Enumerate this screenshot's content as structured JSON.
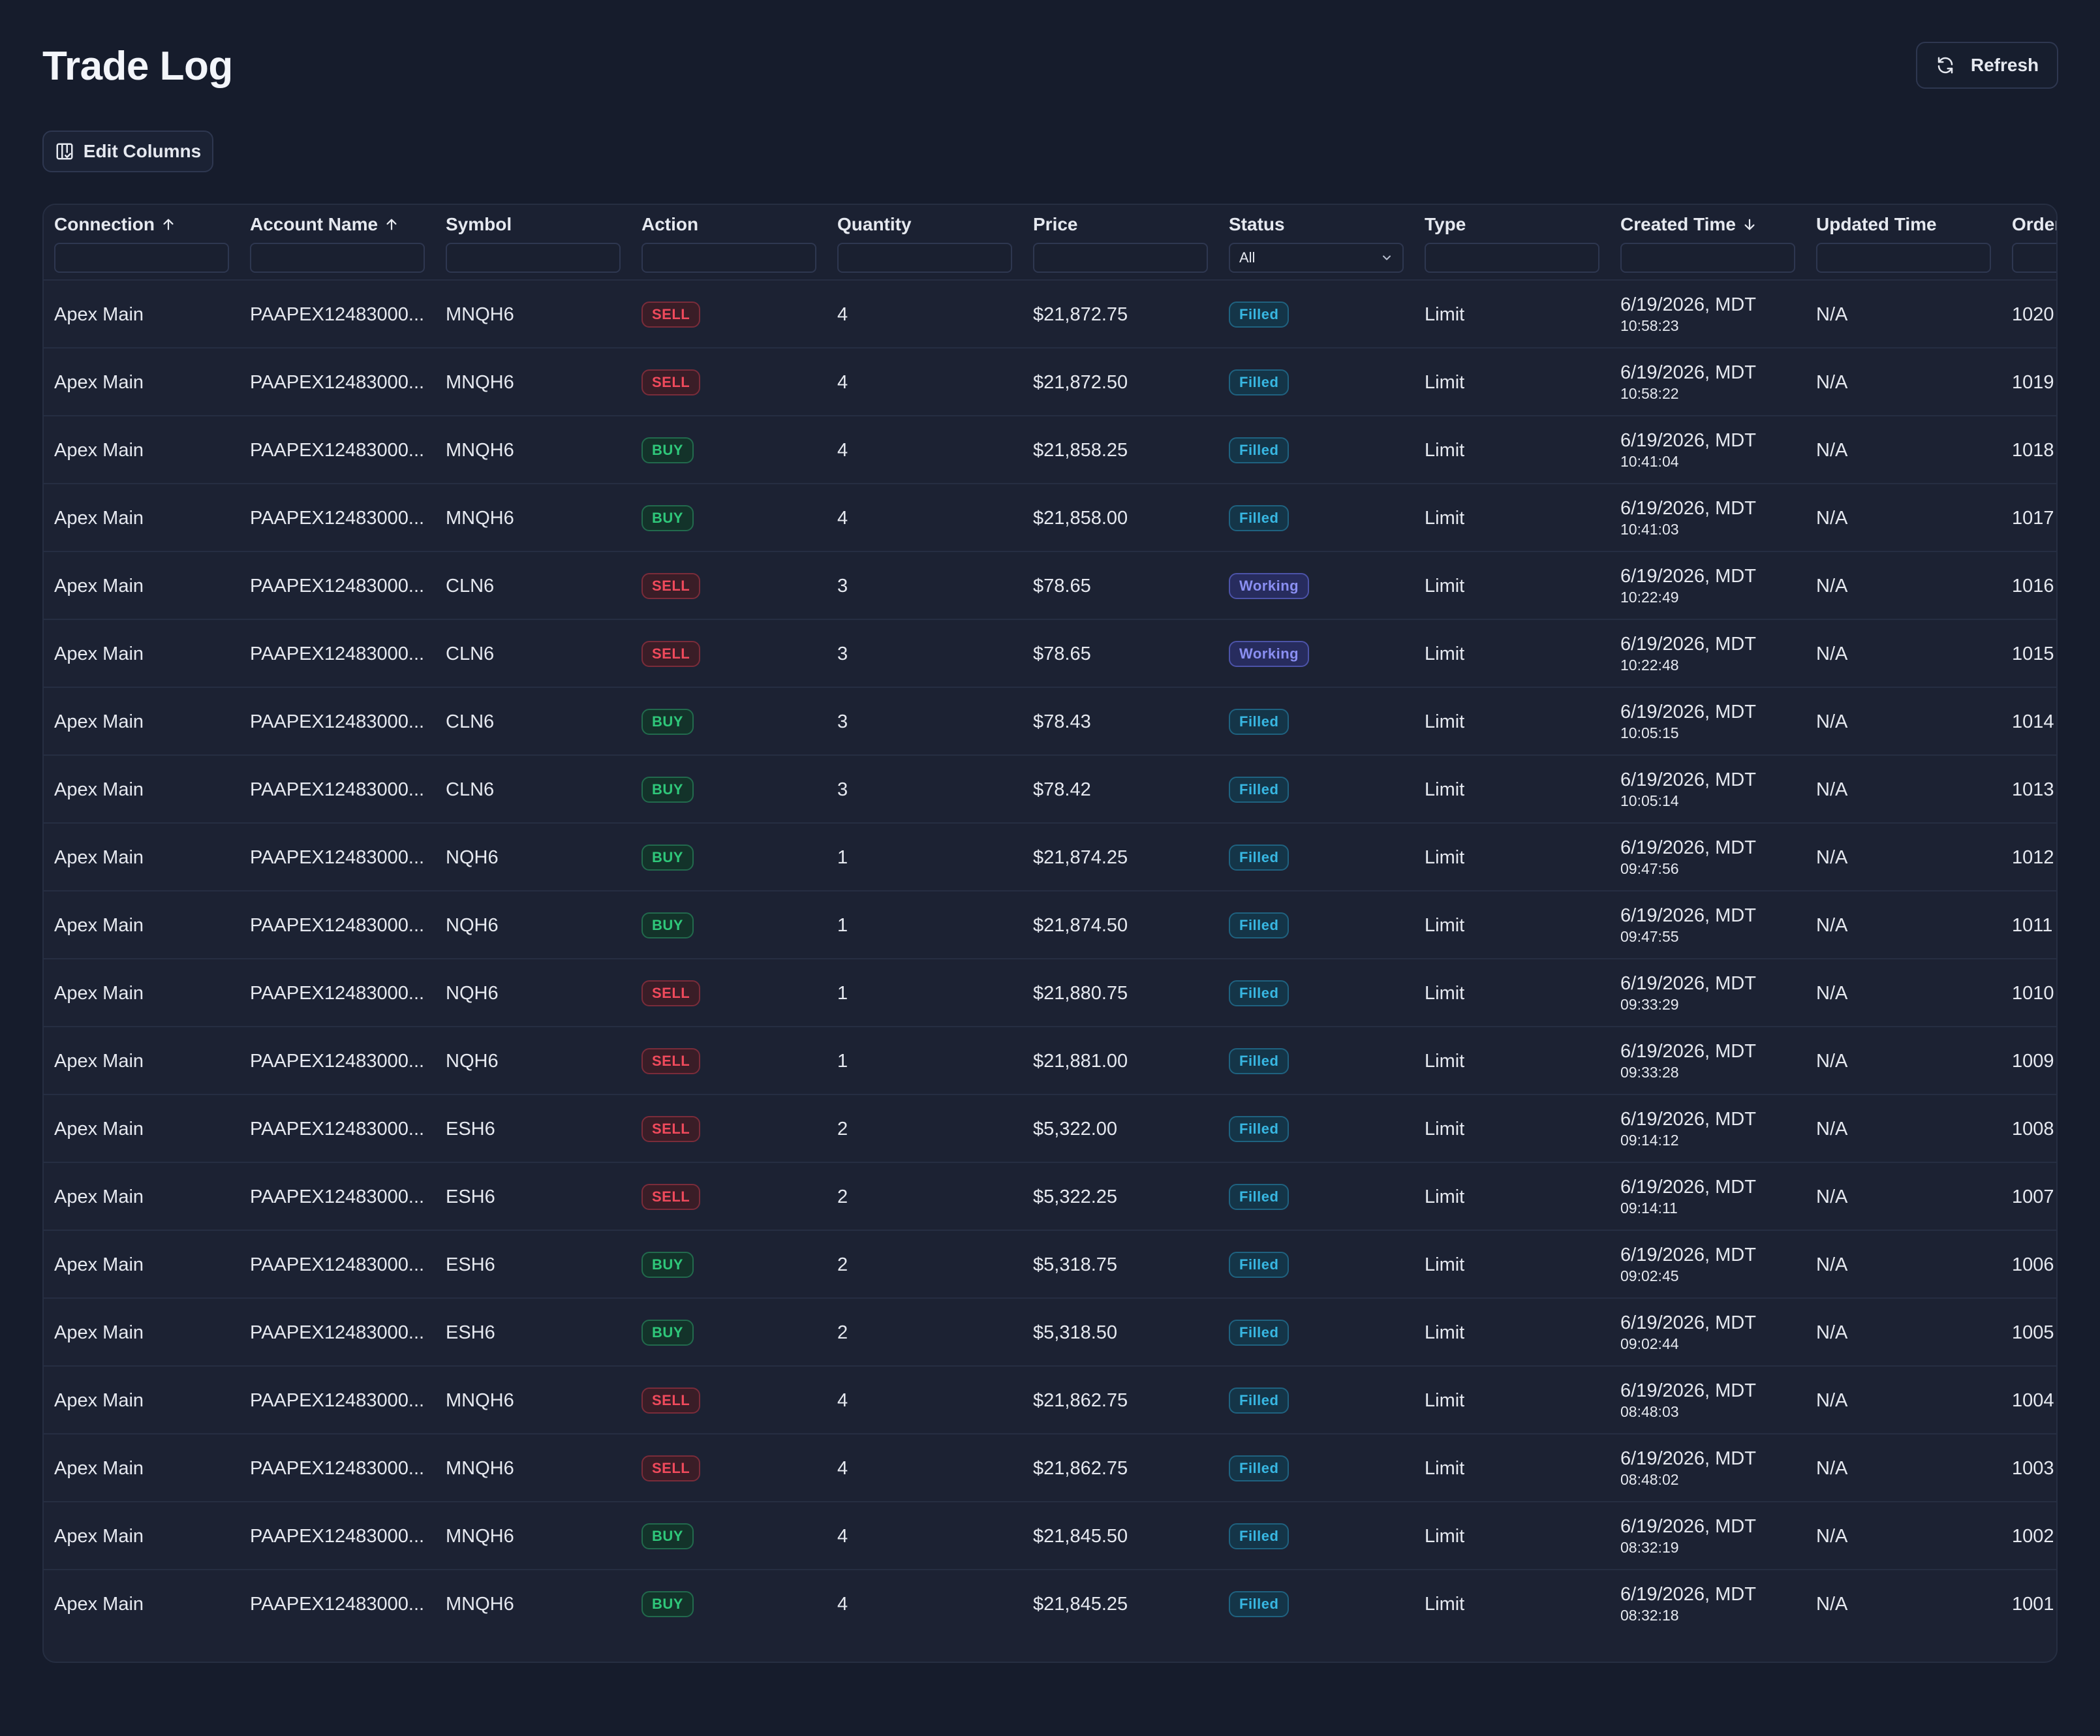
{
  "page": {
    "title": "Trade Log"
  },
  "toolbar": {
    "refresh_label": "Refresh",
    "edit_columns_label": "Edit Columns"
  },
  "columns": [
    {
      "label": "Connection",
      "sort": "asc"
    },
    {
      "label": "Account Name",
      "sort": "asc"
    },
    {
      "label": "Symbol",
      "sort": ""
    },
    {
      "label": "Action",
      "sort": ""
    },
    {
      "label": "Quantity",
      "sort": ""
    },
    {
      "label": "Price",
      "sort": ""
    },
    {
      "label": "Status",
      "sort": ""
    },
    {
      "label": "Type",
      "sort": ""
    },
    {
      "label": "Created Time",
      "sort": "desc"
    },
    {
      "label": "Updated Time",
      "sort": ""
    },
    {
      "label": "Order",
      "sort": ""
    }
  ],
  "filters": {
    "status_selected": "All"
  },
  "colors": {
    "background": "#161c2c",
    "sell": "#f04a5c",
    "buy": "#2fc77a",
    "filled": "#38b7e2",
    "working": "#8a8ff2"
  },
  "rows": [
    {
      "connection": "Apex Main",
      "account": "PAAPEX12483000...",
      "symbol": "MNQH6",
      "action": "SELL",
      "quantity": "4",
      "price": "$21,872.75",
      "status": "Filled",
      "type": "Limit",
      "created_date": "6/19/2026, MDT",
      "created_time": "10:58:23",
      "updated": "N/A",
      "order": "1020"
    },
    {
      "connection": "Apex Main",
      "account": "PAAPEX12483000...",
      "symbol": "MNQH6",
      "action": "SELL",
      "quantity": "4",
      "price": "$21,872.50",
      "status": "Filled",
      "type": "Limit",
      "created_date": "6/19/2026, MDT",
      "created_time": "10:58:22",
      "updated": "N/A",
      "order": "1019"
    },
    {
      "connection": "Apex Main",
      "account": "PAAPEX12483000...",
      "symbol": "MNQH6",
      "action": "BUY",
      "quantity": "4",
      "price": "$21,858.25",
      "status": "Filled",
      "type": "Limit",
      "created_date": "6/19/2026, MDT",
      "created_time": "10:41:04",
      "updated": "N/A",
      "order": "1018"
    },
    {
      "connection": "Apex Main",
      "account": "PAAPEX12483000...",
      "symbol": "MNQH6",
      "action": "BUY",
      "quantity": "4",
      "price": "$21,858.00",
      "status": "Filled",
      "type": "Limit",
      "created_date": "6/19/2026, MDT",
      "created_time": "10:41:03",
      "updated": "N/A",
      "order": "1017"
    },
    {
      "connection": "Apex Main",
      "account": "PAAPEX12483000...",
      "symbol": "CLN6",
      "action": "SELL",
      "quantity": "3",
      "price": "$78.65",
      "status": "Working",
      "type": "Limit",
      "created_date": "6/19/2026, MDT",
      "created_time": "10:22:49",
      "updated": "N/A",
      "order": "1016"
    },
    {
      "connection": "Apex Main",
      "account": "PAAPEX12483000...",
      "symbol": "CLN6",
      "action": "SELL",
      "quantity": "3",
      "price": "$78.65",
      "status": "Working",
      "type": "Limit",
      "created_date": "6/19/2026, MDT",
      "created_time": "10:22:48",
      "updated": "N/A",
      "order": "1015"
    },
    {
      "connection": "Apex Main",
      "account": "PAAPEX12483000...",
      "symbol": "CLN6",
      "action": "BUY",
      "quantity": "3",
      "price": "$78.43",
      "status": "Filled",
      "type": "Limit",
      "created_date": "6/19/2026, MDT",
      "created_time": "10:05:15",
      "updated": "N/A",
      "order": "1014"
    },
    {
      "connection": "Apex Main",
      "account": "PAAPEX12483000...",
      "symbol": "CLN6",
      "action": "BUY",
      "quantity": "3",
      "price": "$78.42",
      "status": "Filled",
      "type": "Limit",
      "created_date": "6/19/2026, MDT",
      "created_time": "10:05:14",
      "updated": "N/A",
      "order": "1013"
    },
    {
      "connection": "Apex Main",
      "account": "PAAPEX12483000...",
      "symbol": "NQH6",
      "action": "BUY",
      "quantity": "1",
      "price": "$21,874.25",
      "status": "Filled",
      "type": "Limit",
      "created_date": "6/19/2026, MDT",
      "created_time": "09:47:56",
      "updated": "N/A",
      "order": "1012"
    },
    {
      "connection": "Apex Main",
      "account": "PAAPEX12483000...",
      "symbol": "NQH6",
      "action": "BUY",
      "quantity": "1",
      "price": "$21,874.50",
      "status": "Filled",
      "type": "Limit",
      "created_date": "6/19/2026, MDT",
      "created_time": "09:47:55",
      "updated": "N/A",
      "order": "1011"
    },
    {
      "connection": "Apex Main",
      "account": "PAAPEX12483000...",
      "symbol": "NQH6",
      "action": "SELL",
      "quantity": "1",
      "price": "$21,880.75",
      "status": "Filled",
      "type": "Limit",
      "created_date": "6/19/2026, MDT",
      "created_time": "09:33:29",
      "updated": "N/A",
      "order": "1010"
    },
    {
      "connection": "Apex Main",
      "account": "PAAPEX12483000...",
      "symbol": "NQH6",
      "action": "SELL",
      "quantity": "1",
      "price": "$21,881.00",
      "status": "Filled",
      "type": "Limit",
      "created_date": "6/19/2026, MDT",
      "created_time": "09:33:28",
      "updated": "N/A",
      "order": "1009"
    },
    {
      "connection": "Apex Main",
      "account": "PAAPEX12483000...",
      "symbol": "ESH6",
      "action": "SELL",
      "quantity": "2",
      "price": "$5,322.00",
      "status": "Filled",
      "type": "Limit",
      "created_date": "6/19/2026, MDT",
      "created_time": "09:14:12",
      "updated": "N/A",
      "order": "1008"
    },
    {
      "connection": "Apex Main",
      "account": "PAAPEX12483000...",
      "symbol": "ESH6",
      "action": "SELL",
      "quantity": "2",
      "price": "$5,322.25",
      "status": "Filled",
      "type": "Limit",
      "created_date": "6/19/2026, MDT",
      "created_time": "09:14:11",
      "updated": "N/A",
      "order": "1007"
    },
    {
      "connection": "Apex Main",
      "account": "PAAPEX12483000...",
      "symbol": "ESH6",
      "action": "BUY",
      "quantity": "2",
      "price": "$5,318.75",
      "status": "Filled",
      "type": "Limit",
      "created_date": "6/19/2026, MDT",
      "created_time": "09:02:45",
      "updated": "N/A",
      "order": "1006"
    },
    {
      "connection": "Apex Main",
      "account": "PAAPEX12483000...",
      "symbol": "ESH6",
      "action": "BUY",
      "quantity": "2",
      "price": "$5,318.50",
      "status": "Filled",
      "type": "Limit",
      "created_date": "6/19/2026, MDT",
      "created_time": "09:02:44",
      "updated": "N/A",
      "order": "1005"
    },
    {
      "connection": "Apex Main",
      "account": "PAAPEX12483000...",
      "symbol": "MNQH6",
      "action": "SELL",
      "quantity": "4",
      "price": "$21,862.75",
      "status": "Filled",
      "type": "Limit",
      "created_date": "6/19/2026, MDT",
      "created_time": "08:48:03",
      "updated": "N/A",
      "order": "1004"
    },
    {
      "connection": "Apex Main",
      "account": "PAAPEX12483000...",
      "symbol": "MNQH6",
      "action": "SELL",
      "quantity": "4",
      "price": "$21,862.75",
      "status": "Filled",
      "type": "Limit",
      "created_date": "6/19/2026, MDT",
      "created_time": "08:48:02",
      "updated": "N/A",
      "order": "1003"
    },
    {
      "connection": "Apex Main",
      "account": "PAAPEX12483000...",
      "symbol": "MNQH6",
      "action": "BUY",
      "quantity": "4",
      "price": "$21,845.50",
      "status": "Filled",
      "type": "Limit",
      "created_date": "6/19/2026, MDT",
      "created_time": "08:32:19",
      "updated": "N/A",
      "order": "1002"
    },
    {
      "connection": "Apex Main",
      "account": "PAAPEX12483000...",
      "symbol": "MNQH6",
      "action": "BUY",
      "quantity": "4",
      "price": "$21,845.25",
      "status": "Filled",
      "type": "Limit",
      "created_date": "6/19/2026, MDT",
      "created_time": "08:32:18",
      "updated": "N/A",
      "order": "1001"
    }
  ]
}
